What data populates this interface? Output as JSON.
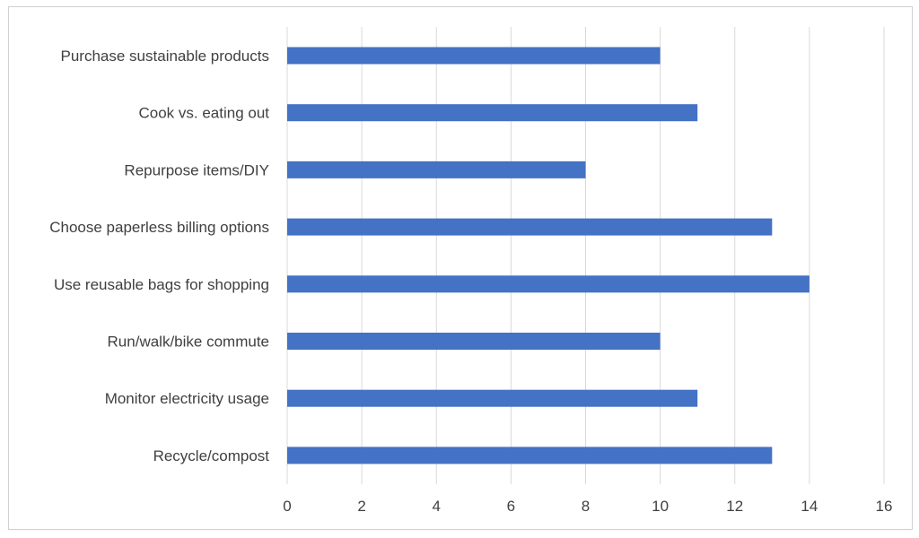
{
  "chart_data": {
    "type": "bar",
    "orientation": "horizontal",
    "categories": [
      "Purchase sustainable products",
      "Cook vs. eating out",
      "Repurpose items/DIY",
      "Choose paperless billing options",
      "Use reusable bags for shopping",
      "Run/walk/bike commute",
      "Monitor electricity usage",
      "Recycle/compost"
    ],
    "values": [
      10,
      11,
      8,
      13,
      14,
      10,
      11,
      13
    ],
    "xlim": [
      0,
      16
    ],
    "xticks": [
      0,
      2,
      4,
      6,
      8,
      10,
      12,
      14,
      16
    ],
    "grid": true,
    "bar_color": "#4472C4",
    "grid_color": "#d9d9d9",
    "title": "",
    "xlabel": "",
    "ylabel": ""
  }
}
